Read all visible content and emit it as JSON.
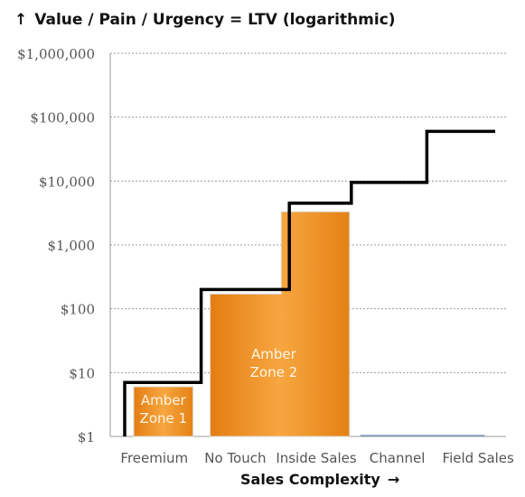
{
  "chart_data": {
    "type": "area",
    "title": "Value / Pain / Urgency = LTV (logarithmic)",
    "title_icon": "up-arrow-icon",
    "xlabel": "Sales Complexity",
    "xlabel_icon": "right-arrow-icon",
    "ylabel": "",
    "yscale": "log",
    "ylim": [
      1,
      1000000
    ],
    "yticks": [
      {
        "value": 1,
        "label": "$1"
      },
      {
        "value": 10,
        "label": "$10"
      },
      {
        "value": 100,
        "label": "$100"
      },
      {
        "value": 1000,
        "label": "$1,000"
      },
      {
        "value": 10000,
        "label": "$10,000"
      },
      {
        "value": 100000,
        "label": "$100,000"
      },
      {
        "value": 1000000,
        "label": "$1,000,000"
      }
    ],
    "categories": [
      "Freemium",
      "No Touch",
      "Inside Sales",
      "Channel",
      "Field Sales"
    ],
    "grid": true,
    "ltv_line": {
      "color": "#000000",
      "values": [
        7,
        200,
        4500,
        9500,
        60000
      ]
    },
    "zones": [
      {
        "label_lines": [
          "Amber",
          "Zone 1"
        ],
        "from_category": 0,
        "to_category": 0,
        "value": 6,
        "color": "#f39a2b"
      },
      {
        "label_lines": [
          "Amber",
          "Zone 2"
        ],
        "from_category": 1,
        "to_category": 2,
        "values": [
          170,
          3300
        ],
        "color": "#f39a2b"
      }
    ]
  }
}
